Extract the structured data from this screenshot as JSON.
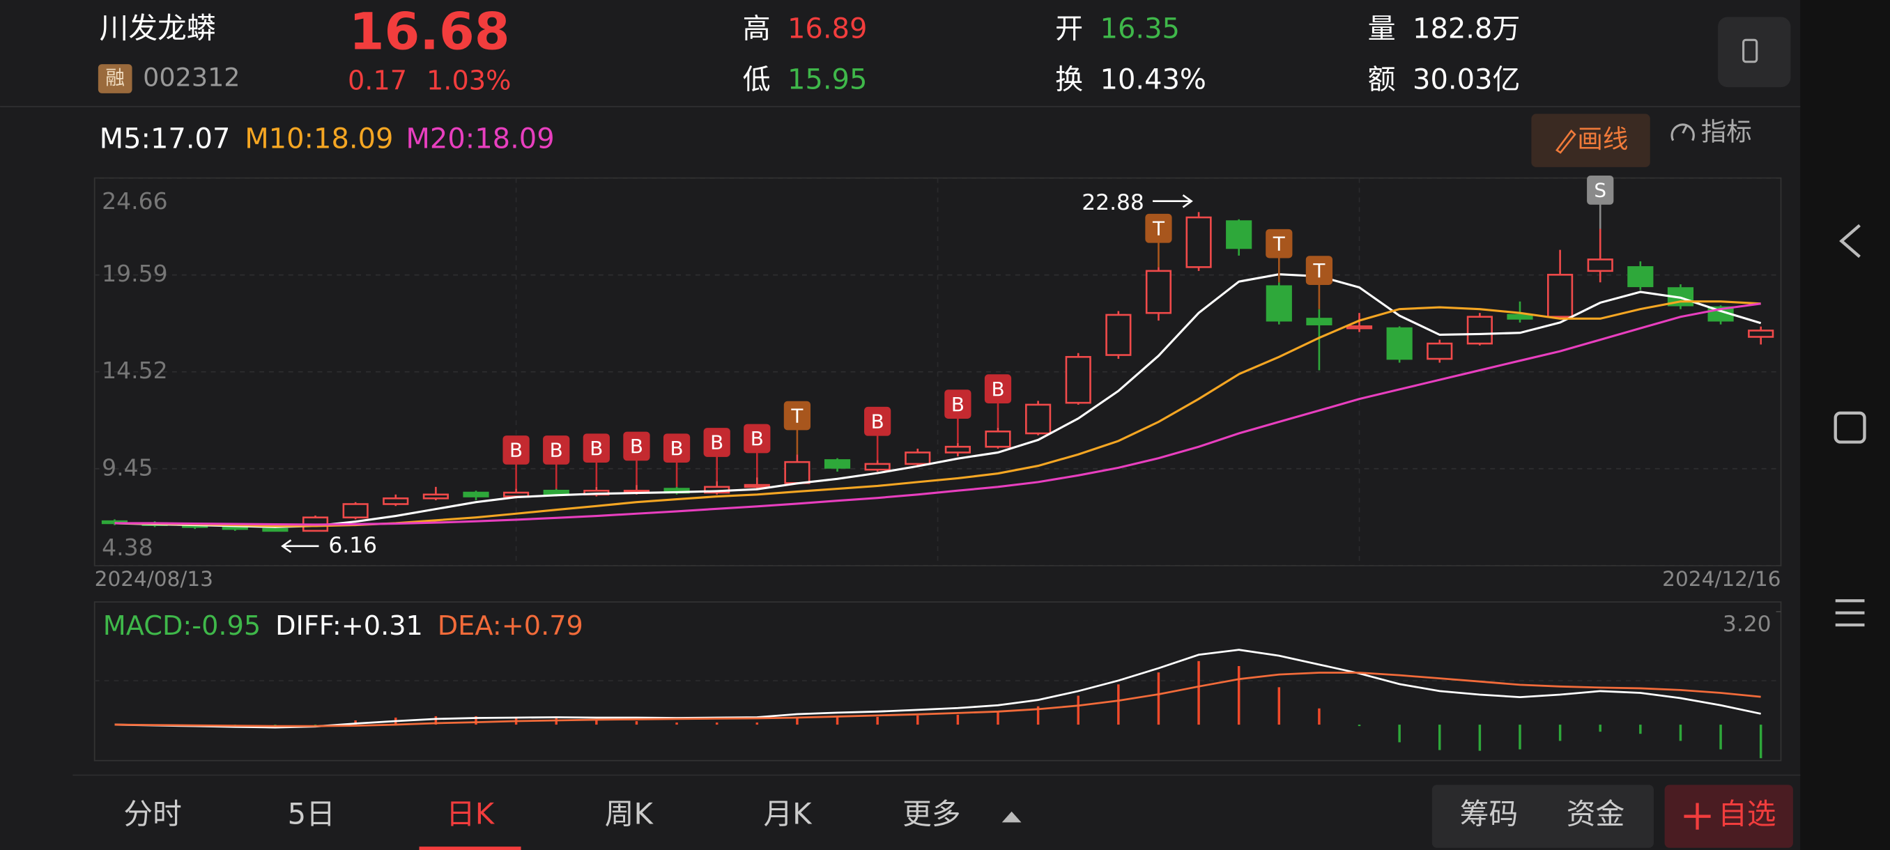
{
  "header": {
    "name": "川发龙蟒",
    "badge": "融",
    "code": "002312",
    "price": 16.68,
    "change": 0.17,
    "change_pct": "1.03%",
    "stats": [
      {
        "label": "高",
        "value": 16.89
      },
      {
        "label": "低",
        "value": 15.95
      },
      {
        "label": "开",
        "value": 16.35
      },
      {
        "label": "换",
        "value": "10.43%"
      },
      {
        "label": "量",
        "value": "182.8万"
      },
      {
        "label": "额",
        "value": "30.03亿"
      }
    ]
  },
  "ma_legend": [
    "M5:17.07",
    "M10:18.09",
    "M20:18.09"
  ],
  "tools": [
    "画线",
    "指标"
  ],
  "chart_data": [
    {
      "type": "candlestick",
      "up_color": "#f04a4a",
      "down_color": "#2ea83a",
      "categories": [
        "2024/08/13",
        null,
        null,
        null,
        null,
        null,
        null,
        null,
        null,
        null,
        null,
        null,
        null,
        null,
        null,
        null,
        null,
        null,
        null,
        null,
        null,
        null,
        null,
        null,
        null,
        null,
        null,
        null,
        null,
        null,
        null,
        null,
        null,
        null,
        null,
        null,
        null,
        null,
        null,
        null,
        null,
        "2024/12/16"
      ],
      "candles": [
        [
          6.7,
          6.8,
          6.5,
          6.6
        ],
        [
          6.6,
          6.7,
          6.4,
          6.5
        ],
        [
          6.5,
          6.6,
          6.3,
          6.4
        ],
        [
          6.4,
          6.5,
          6.2,
          6.3
        ],
        [
          6.3,
          6.4,
          6.16,
          6.2
        ],
        [
          6.2,
          7.0,
          6.2,
          6.9
        ],
        [
          6.9,
          7.7,
          6.8,
          7.6
        ],
        [
          7.6,
          8.1,
          7.5,
          7.9
        ],
        [
          7.9,
          8.5,
          7.8,
          8.1
        ],
        [
          8.2,
          8.3,
          7.8,
          8.0
        ],
        [
          8.0,
          8.4,
          7.9,
          8.2
        ],
        [
          8.3,
          8.4,
          8.0,
          8.1
        ],
        [
          8.1,
          8.5,
          8.0,
          8.3
        ],
        [
          8.3,
          8.6,
          8.1,
          8.3
        ],
        [
          8.4,
          8.5,
          8.1,
          8.2
        ],
        [
          8.2,
          8.8,
          8.1,
          8.5
        ],
        [
          8.5,
          9.0,
          8.4,
          8.6
        ],
        [
          8.7,
          10.2,
          8.7,
          9.8
        ],
        [
          9.9,
          10.0,
          9.3,
          9.5
        ],
        [
          9.4,
          9.9,
          9.3,
          9.7
        ],
        [
          9.7,
          10.5,
          9.6,
          10.3
        ],
        [
          10.3,
          10.8,
          10.1,
          10.6
        ],
        [
          10.6,
          11.6,
          10.5,
          11.4
        ],
        [
          11.3,
          13.0,
          11.2,
          12.8
        ],
        [
          12.9,
          15.5,
          12.8,
          15.3
        ],
        [
          15.4,
          17.7,
          15.2,
          17.5
        ],
        [
          17.6,
          20.0,
          17.2,
          19.8
        ],
        [
          20.0,
          22.88,
          19.8,
          22.6
        ],
        [
          22.4,
          22.5,
          20.6,
          21.0
        ],
        [
          19.0,
          19.2,
          17.0,
          17.2
        ],
        [
          17.3,
          17.8,
          14.6,
          17.0
        ],
        [
          16.8,
          17.6,
          16.6,
          16.9
        ],
        [
          16.8,
          16.9,
          15.0,
          15.2
        ],
        [
          15.2,
          16.2,
          15.0,
          16.0
        ],
        [
          16.0,
          17.6,
          15.9,
          17.4
        ],
        [
          17.5,
          18.2,
          17.1,
          17.3
        ],
        [
          17.4,
          20.9,
          17.3,
          19.6
        ],
        [
          19.8,
          22.0,
          19.2,
          20.4
        ],
        [
          20.0,
          20.3,
          18.8,
          19.0
        ],
        [
          18.9,
          19.1,
          17.8,
          18.0
        ],
        [
          17.9,
          18.0,
          17.0,
          17.2
        ],
        [
          16.35,
          16.89,
          15.95,
          16.68
        ]
      ],
      "signals": [
        null,
        null,
        null,
        null,
        null,
        null,
        null,
        null,
        null,
        null,
        "B",
        "B",
        "B",
        "B",
        "B",
        "B",
        "B",
        "T",
        null,
        "B",
        null,
        "B",
        "B",
        null,
        null,
        null,
        "T",
        null,
        null,
        "T",
        "T",
        null,
        null,
        null,
        null,
        null,
        null,
        "S",
        null,
        null,
        null,
        null
      ],
      "signal_colors": {
        "B": "#c42a30",
        "T": "#a8561d",
        "S": "#8a8a8a"
      },
      "series": [
        {
          "color": "#ffffff",
          "values": [
            6.6,
            6.55,
            6.5,
            6.45,
            6.4,
            6.46,
            6.68,
            6.98,
            7.34,
            7.7,
            7.96,
            8.06,
            8.14,
            8.18,
            8.22,
            8.28,
            8.38,
            8.68,
            8.92,
            9.22,
            9.58,
            9.98,
            10.3,
            10.96,
            12.08,
            13.52,
            15.36,
            17.6,
            19.24,
            19.62,
            19.52,
            18.94,
            17.46,
            16.46,
            16.5,
            16.56,
            17.1,
            18.14,
            18.7,
            18.4,
            17.7,
            17.07
          ]
        },
        {
          "color": "#f5a623",
          "values": [
            6.6,
            6.58,
            6.55,
            6.5,
            6.45,
            6.45,
            6.5,
            6.6,
            6.75,
            6.9,
            7.1,
            7.3,
            7.5,
            7.7,
            7.85,
            8.0,
            8.1,
            8.25,
            8.4,
            8.55,
            8.75,
            8.95,
            9.2,
            9.6,
            10.2,
            10.9,
            11.9,
            13.1,
            14.4,
            15.3,
            16.3,
            17.2,
            17.8,
            17.9,
            17.8,
            17.6,
            17.3,
            17.3,
            17.8,
            18.2,
            18.2,
            18.09
          ]
        },
        {
          "color": "#e83fbf",
          "values": [
            6.6,
            6.6,
            6.58,
            6.56,
            6.54,
            6.53,
            6.55,
            6.58,
            6.63,
            6.7,
            6.78,
            6.88,
            6.98,
            7.1,
            7.22,
            7.35,
            7.48,
            7.62,
            7.78,
            7.92,
            8.1,
            8.3,
            8.5,
            8.75,
            9.1,
            9.5,
            10.0,
            10.6,
            11.3,
            11.9,
            12.5,
            13.1,
            13.6,
            14.1,
            14.6,
            15.1,
            15.6,
            16.2,
            16.8,
            17.4,
            17.8,
            18.09
          ]
        }
      ],
      "high_annotation": 22.88,
      "low_annotation": 6.16,
      "ylim": [
        4.38,
        24.66
      ],
      "yticks": [
        24.66,
        19.59,
        14.52,
        9.45,
        4.38
      ],
      "grid": true
    },
    {
      "type": "macd",
      "legend": [
        {
          "text": "MACD:-0.95",
          "color": "#3fb84a"
        },
        {
          "text": "DIFF:+0.31",
          "color": "#ffffff"
        },
        {
          "text": "DEA:+0.79",
          "color": "#f26b3a"
        }
      ],
      "ylim": [
        -0.95,
        3.2
      ],
      "yticks": [
        {
          "value": 3.2,
          "label": "3.20"
        }
      ],
      "up_color": "#f04a2a",
      "down_color": "#2ea83a",
      "series": [
        {
          "color": "#ffffff",
          "values": [
            0.0,
            -0.02,
            -0.04,
            -0.06,
            -0.08,
            -0.05,
            0.03,
            0.1,
            0.16,
            0.19,
            0.2,
            0.21,
            0.2,
            0.2,
            0.19,
            0.2,
            0.21,
            0.3,
            0.34,
            0.37,
            0.42,
            0.47,
            0.55,
            0.7,
            0.95,
            1.25,
            1.6,
            1.98,
            2.12,
            1.95,
            1.7,
            1.45,
            1.15,
            0.95,
            0.85,
            0.78,
            0.85,
            0.95,
            0.9,
            0.75,
            0.55,
            0.31
          ]
        },
        {
          "color": "#f26b3a",
          "values": [
            0.0,
            -0.01,
            -0.02,
            -0.03,
            -0.04,
            -0.04,
            -0.03,
            0.0,
            0.04,
            0.07,
            0.1,
            0.12,
            0.14,
            0.15,
            0.16,
            0.17,
            0.18,
            0.2,
            0.23,
            0.26,
            0.29,
            0.33,
            0.37,
            0.44,
            0.54,
            0.68,
            0.86,
            1.08,
            1.29,
            1.42,
            1.47,
            1.47,
            1.4,
            1.31,
            1.22,
            1.13,
            1.08,
            1.05,
            1.03,
            0.98,
            0.9,
            0.79
          ]
        }
      ],
      "hist": [
        0,
        -0.02,
        -0.04,
        -0.06,
        -0.08,
        -0.02,
        0.12,
        0.2,
        0.24,
        0.24,
        0.2,
        0.18,
        0.12,
        0.1,
        0.06,
        0.06,
        0.06,
        0.2,
        0.22,
        0.22,
        0.26,
        0.28,
        0.36,
        0.52,
        0.82,
        1.14,
        1.48,
        1.8,
        1.66,
        1.06,
        0.46,
        -0.04,
        -0.5,
        -0.72,
        -0.74,
        -0.7,
        -0.46,
        -0.2,
        -0.26,
        -0.46,
        -0.7,
        -0.95
      ]
    }
  ],
  "tabs": [
    "分时",
    "5日",
    "日K",
    "周K",
    "月K",
    "更多"
  ],
  "active_tab": 2,
  "actions": [
    "筹码",
    "资金",
    "自选"
  ]
}
